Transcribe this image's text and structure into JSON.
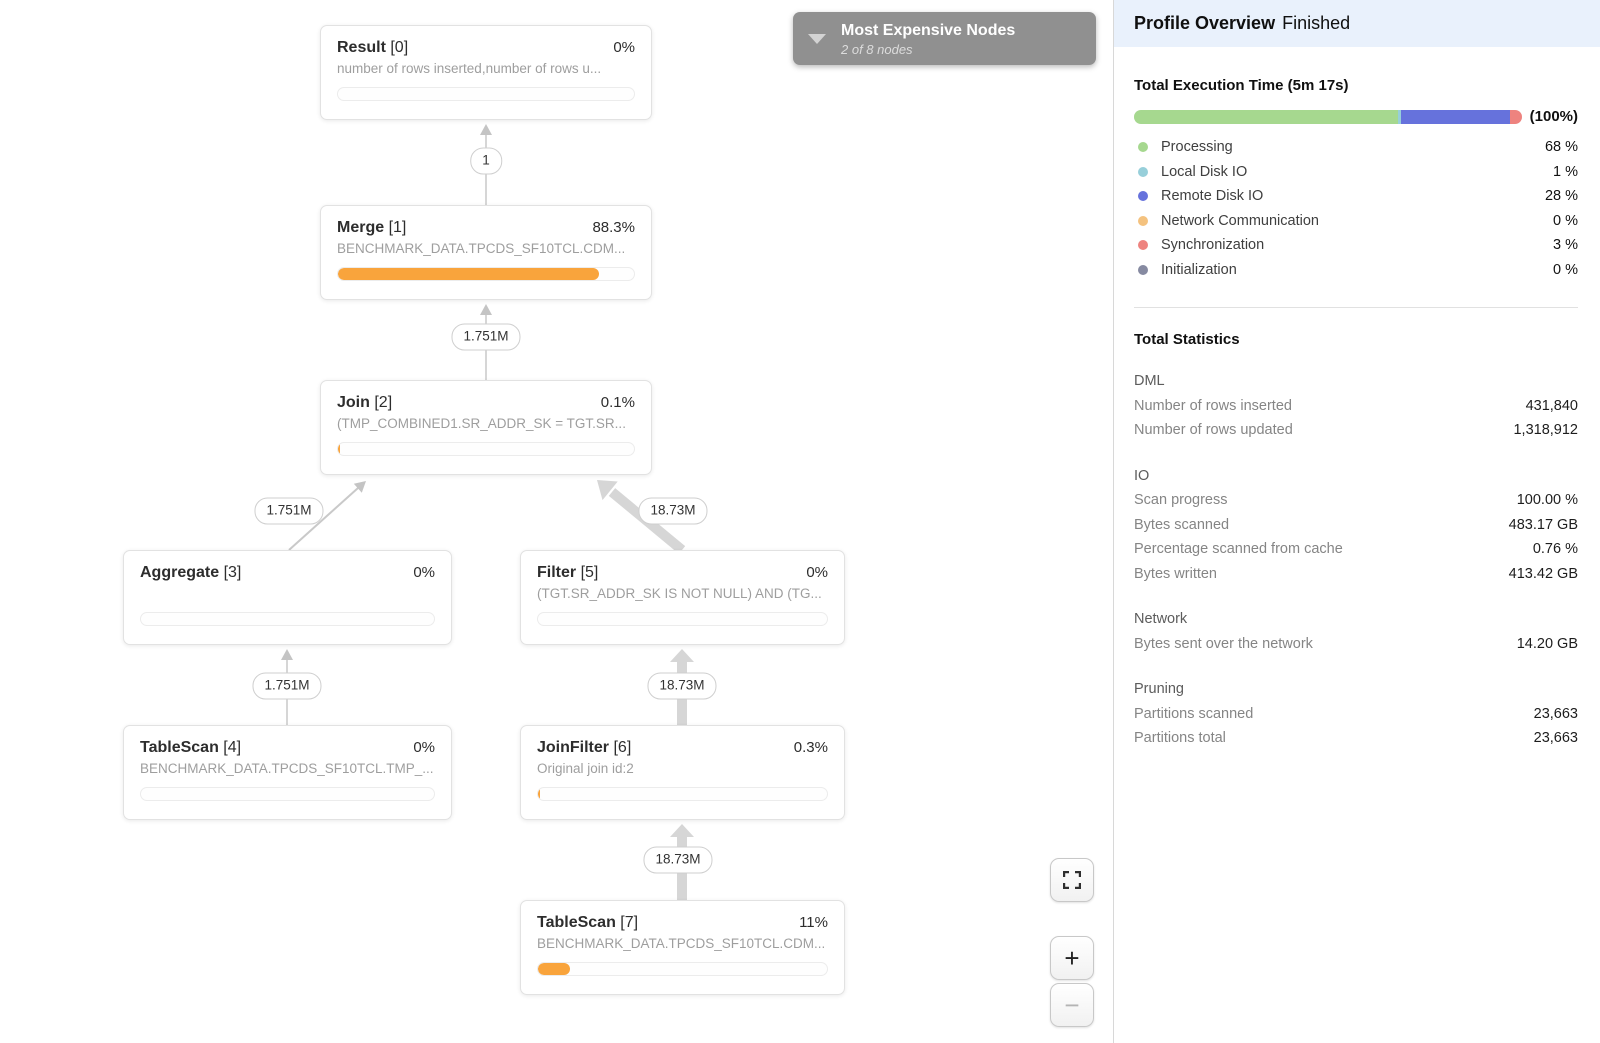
{
  "colors": {
    "bar_fill": "#f9a43c",
    "edge_thin": "#c9c9c9",
    "edge_thick": "#d6d6d6",
    "header_bg": "#e9f1fc",
    "dropdown_bg": "#909090"
  },
  "canvas": {
    "nodes": [
      {
        "name": "Result",
        "index_label": "[0]",
        "pct": "0%",
        "subtitle": "number of rows inserted,number of rows u...",
        "fill_pct": 0
      },
      {
        "name": "Merge",
        "index_label": "[1]",
        "pct": "88.3%",
        "subtitle": "BENCHMARK_DATA.TPCDS_SF10TCL.CDM...",
        "fill_pct": 88.3
      },
      {
        "name": "Join",
        "index_label": "[2]",
        "pct": "0.1%",
        "subtitle": "(TMP_COMBINED1.SR_ADDR_SK = TGT.SR...",
        "fill_pct": 0.7
      },
      {
        "name": "Aggregate",
        "index_label": "[3]",
        "pct": "0%",
        "subtitle": "",
        "fill_pct": 0
      },
      {
        "name": "Filter",
        "index_label": "[5]",
        "pct": "0%",
        "subtitle": "(TGT.SR_ADDR_SK IS NOT NULL) AND (TG...",
        "fill_pct": 0
      },
      {
        "name": "TableScan",
        "index_label": "[4]",
        "pct": "0%",
        "subtitle": "BENCHMARK_DATA.TPCDS_SF10TCL.TMP_...",
        "fill_pct": 0
      },
      {
        "name": "JoinFilter",
        "index_label": "[6]",
        "pct": "0.3%",
        "subtitle": "Original join id:2",
        "fill_pct": 0.7
      },
      {
        "name": "TableScan",
        "index_label": "[7]",
        "pct": "11%",
        "subtitle": "BENCHMARK_DATA.TPCDS_SF10TCL.CDM...",
        "fill_pct": 11
      }
    ],
    "edge_labels": [
      "1",
      "1.751M",
      "1.751M",
      "18.73M",
      "1.751M",
      "18.73M",
      "18.73M"
    ]
  },
  "expensive_nodes": {
    "title": "Most Expensive Nodes",
    "subtitle": "2 of 8 nodes"
  },
  "controls": {
    "zoom_in": "+",
    "zoom_out": "−"
  },
  "panel": {
    "title": "Profile Overview",
    "status": "Finished",
    "execution": {
      "heading": "Total Execution Time (5m 17s)",
      "total_label": "(100%)",
      "items": [
        {
          "label": "Processing",
          "value": "68 %",
          "pct": 68,
          "color": "#a6d88f"
        },
        {
          "label": "Local Disk IO",
          "value": "1 %",
          "pct": 1,
          "color": "#97cfda"
        },
        {
          "label": "Remote Disk IO",
          "value": "28 %",
          "pct": 28,
          "color": "#6672dc"
        },
        {
          "label": "Network Communication",
          "value": "0 %",
          "pct": 0,
          "color": "#f4c27f"
        },
        {
          "label": "Synchronization",
          "value": "3 %",
          "pct": 3,
          "color": "#ee837f"
        },
        {
          "label": "Initialization",
          "value": "0 %",
          "pct": 0,
          "color": "#868aa1"
        }
      ]
    },
    "statistics": {
      "heading": "Total Statistics",
      "groups": [
        {
          "title": "DML",
          "rows": [
            {
              "label": "Number of rows inserted",
              "value": "431,840"
            },
            {
              "label": "Number of rows updated",
              "value": "1,318,912"
            }
          ]
        },
        {
          "title": "IO",
          "rows": [
            {
              "label": "Scan progress",
              "value": "100.00 %"
            },
            {
              "label": "Bytes scanned",
              "value": "483.17 GB"
            },
            {
              "label": "Percentage scanned from cache",
              "value": "0.76 %"
            },
            {
              "label": "Bytes written",
              "value": "413.42 GB"
            }
          ]
        },
        {
          "title": "Network",
          "rows": [
            {
              "label": "Bytes sent over the network",
              "value": "14.20 GB"
            }
          ]
        },
        {
          "title": "Pruning",
          "rows": [
            {
              "label": "Partitions scanned",
              "value": "23,663"
            },
            {
              "label": "Partitions total",
              "value": "23,663"
            }
          ]
        }
      ]
    }
  }
}
